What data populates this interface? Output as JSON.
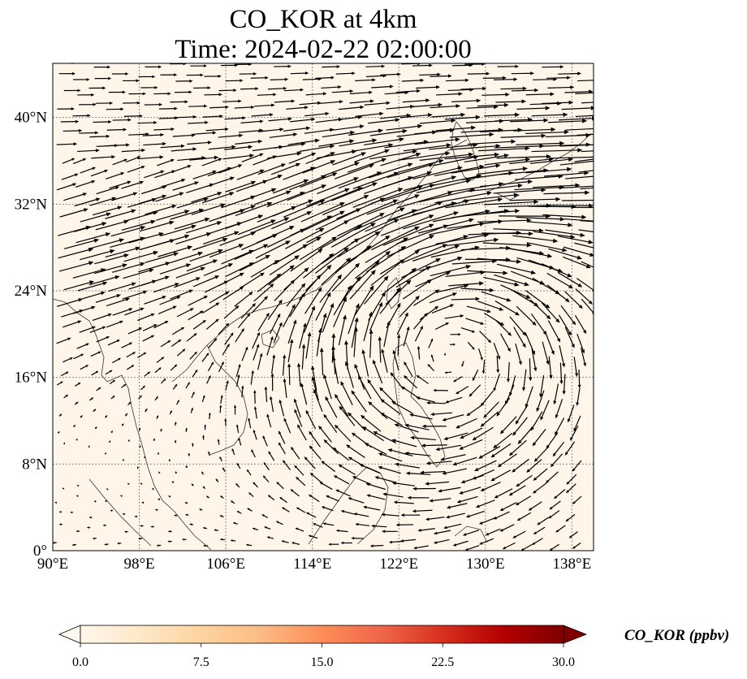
{
  "chart_data": {
    "type": "heatmap",
    "title": "CO_KOR at 4km",
    "subtitle": "Time: 2024-02-22 02:00:00",
    "variable": "CO_KOR",
    "overlay": "wind vectors (quiver)",
    "xlim": [
      90,
      140
    ],
    "ylim": [
      0,
      45
    ],
    "x_ticks": [
      90,
      98,
      106,
      114,
      122,
      130,
      138
    ],
    "x_tick_labels": [
      "90°E",
      "98°E",
      "106°E",
      "114°E",
      "122°E",
      "130°E",
      "138°E"
    ],
    "y_ticks": [
      0,
      8,
      16,
      24,
      32,
      40
    ],
    "y_tick_labels": [
      "0°",
      "8°N",
      "16°N",
      "24°N",
      "32°N",
      "40°N"
    ],
    "grid": true,
    "field_value_typical": 0.4,
    "local_maxima": [
      {
        "lon": 129.5,
        "lat": 37.0,
        "value": 1.5
      },
      {
        "lon": 135.5,
        "lat": 38.5,
        "value": 1.2
      }
    ],
    "colorbar": {
      "label": "CO_KOR (ppbv)",
      "min": 0.0,
      "max": 30.0,
      "ticks": [
        0.0,
        7.5,
        15.0,
        22.5,
        30.0
      ],
      "tick_labels": [
        "0.0",
        "7.5",
        "15.0",
        "22.5",
        "30.0"
      ],
      "extend": "both",
      "colormap": "OrRd",
      "colors": [
        "#fff7ec",
        "#fee8c8",
        "#fdd49e",
        "#fdbb84",
        "#fc8d59",
        "#ef6548",
        "#d7301f",
        "#b30000",
        "#7f0000"
      ]
    },
    "colors": {
      "coastline": "#333333",
      "gridline": "#888888",
      "arrow": "#000000"
    }
  }
}
